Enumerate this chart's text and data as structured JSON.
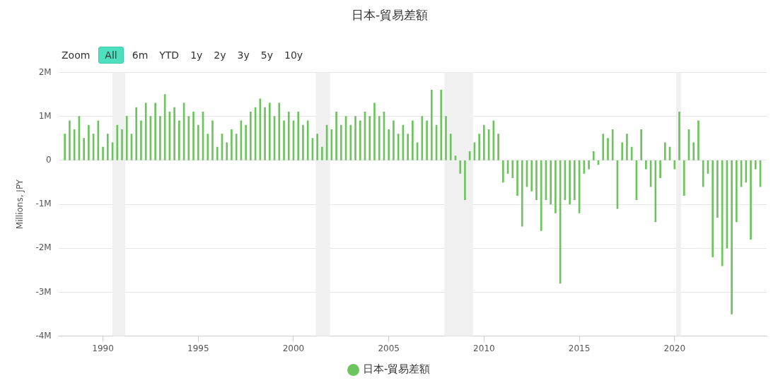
{
  "chart_data": {
    "type": "bar",
    "title": "日本-貿易差額",
    "ylabel": "Millions, JPY",
    "annotations": [
      "Zoom",
      "All",
      "6m",
      "YTD",
      "1y",
      "2y",
      "3y",
      "5y",
      "10y"
    ],
    "x": [
      "1988-01",
      "1988-04",
      "1988-07",
      "1988-10",
      "1989-01",
      "1989-04",
      "1989-07",
      "1989-10",
      "1990-01",
      "1990-04",
      "1990-07",
      "1990-10",
      "1991-01",
      "1991-04",
      "1991-07",
      "1991-10",
      "1992-01",
      "1992-04",
      "1992-07",
      "1992-10",
      "1993-01",
      "1993-04",
      "1993-07",
      "1993-10",
      "1994-01",
      "1994-04",
      "1994-07",
      "1994-10",
      "1995-01",
      "1995-04",
      "1995-07",
      "1995-10",
      "1996-01",
      "1996-04",
      "1996-07",
      "1996-10",
      "1997-01",
      "1997-04",
      "1997-07",
      "1997-10",
      "1998-01",
      "1998-04",
      "1998-07",
      "1998-10",
      "1999-01",
      "1999-04",
      "1999-07",
      "1999-10",
      "2000-01",
      "2000-04",
      "2000-07",
      "2000-10",
      "2001-01",
      "2001-04",
      "2001-07",
      "2001-10",
      "2002-01",
      "2002-04",
      "2002-07",
      "2002-10",
      "2003-01",
      "2003-04",
      "2003-07",
      "2003-10",
      "2004-01",
      "2004-04",
      "2004-07",
      "2004-10",
      "2005-01",
      "2005-04",
      "2005-07",
      "2005-10",
      "2006-01",
      "2006-04",
      "2006-07",
      "2006-10",
      "2007-01",
      "2007-04",
      "2007-07",
      "2007-10",
      "2008-01",
      "2008-04",
      "2008-07",
      "2008-10",
      "2009-01",
      "2009-04",
      "2009-07",
      "2009-10",
      "2010-01",
      "2010-04",
      "2010-07",
      "2010-10",
      "2011-01",
      "2011-04",
      "2011-07",
      "2011-10",
      "2012-01",
      "2012-04",
      "2012-07",
      "2012-10",
      "2013-01",
      "2013-04",
      "2013-07",
      "2013-10",
      "2014-01",
      "2014-04",
      "2014-07",
      "2014-10",
      "2015-01",
      "2015-04",
      "2015-07",
      "2015-10",
      "2016-01",
      "2016-04",
      "2016-07",
      "2016-10",
      "2017-01",
      "2017-04",
      "2017-07",
      "2017-10",
      "2018-01",
      "2018-04",
      "2018-07",
      "2018-10",
      "2019-01",
      "2019-04",
      "2019-07",
      "2019-10",
      "2020-01",
      "2020-04",
      "2020-07",
      "2020-10",
      "2021-01",
      "2021-04",
      "2021-07",
      "2021-10",
      "2022-01",
      "2022-04",
      "2022-07",
      "2022-10",
      "2023-01",
      "2023-04",
      "2023-07",
      "2023-10",
      "2024-01",
      "2024-04",
      "2024-07"
    ],
    "series": [
      {
        "name": "日本-貿易差額",
        "color": "#6cc45c",
        "values": [
          600000,
          900000,
          700000,
          1000000,
          500000,
          800000,
          600000,
          900000,
          300000,
          600000,
          400000,
          800000,
          700000,
          1000000,
          600000,
          1200000,
          900000,
          1300000,
          1000000,
          1300000,
          1000000,
          1500000,
          1100000,
          1200000,
          900000,
          1300000,
          1000000,
          1100000,
          800000,
          1100000,
          600000,
          900000,
          300000,
          600000,
          400000,
          700000,
          600000,
          900000,
          800000,
          1100000,
          1200000,
          1400000,
          1200000,
          1300000,
          1000000,
          1300000,
          900000,
          1100000,
          900000,
          1100000,
          800000,
          900000,
          500000,
          600000,
          300000,
          800000,
          700000,
          1100000,
          800000,
          1000000,
          800000,
          1000000,
          900000,
          1100000,
          1000000,
          1300000,
          1000000,
          1100000,
          700000,
          900000,
          600000,
          800000,
          600000,
          900000,
          400000,
          1000000,
          900000,
          1600000,
          800000,
          1600000,
          1000000,
          600000,
          100000,
          -300000,
          -900000,
          200000,
          400000,
          600000,
          800000,
          700000,
          900000,
          600000,
          -500000,
          -300000,
          -400000,
          -800000,
          -1500000,
          -600000,
          -700000,
          -900000,
          -1600000,
          -900000,
          -1000000,
          -1200000,
          -2800000,
          -900000,
          -1000000,
          -900000,
          -1200000,
          -300000,
          -200000,
          200000,
          -100000,
          600000,
          500000,
          700000,
          -1100000,
          400000,
          600000,
          300000,
          -900000,
          700000,
          -200000,
          -600000,
          -1400000,
          -400000,
          400000,
          300000,
          -200000,
          1100000,
          -800000,
          700000,
          400000,
          900000,
          -600000,
          -300000,
          -2200000,
          -1300000,
          -2400000,
          -2000000,
          -3500000,
          -1400000,
          -600000,
          -500000,
          -1800000,
          -200000,
          -600000
        ]
      }
    ],
    "xlim": [
      "1987-09",
      "2024-11"
    ],
    "xticks": [
      "1990",
      "1995",
      "2000",
      "2005",
      "2010",
      "2015",
      "2020"
    ],
    "ylim": [
      -4000000,
      2000000
    ],
    "yticks": [
      {
        "value": -4000000,
        "label": "-4M"
      },
      {
        "value": -3000000,
        "label": "-3M"
      },
      {
        "value": -2000000,
        "label": "-2M"
      },
      {
        "value": -1000000,
        "label": "-1M"
      },
      {
        "value": 0,
        "label": "0"
      },
      {
        "value": 1000000,
        "label": "1M"
      },
      {
        "value": 2000000,
        "label": "2M"
      }
    ],
    "bands": [
      {
        "axis": "x",
        "from": "1990-07",
        "to": "1991-03",
        "color": "#f0f0f0"
      },
      {
        "axis": "x",
        "from": "2001-03",
        "to": "2001-12",
        "color": "#f0f0f0"
      },
      {
        "axis": "x",
        "from": "2007-12",
        "to": "2009-06",
        "color": "#f0f0f0"
      },
      {
        "axis": "x",
        "from": "2020-02",
        "to": "2020-05",
        "color": "#f0f0f0"
      }
    ],
    "grid": "y",
    "legend": "bottom"
  }
}
